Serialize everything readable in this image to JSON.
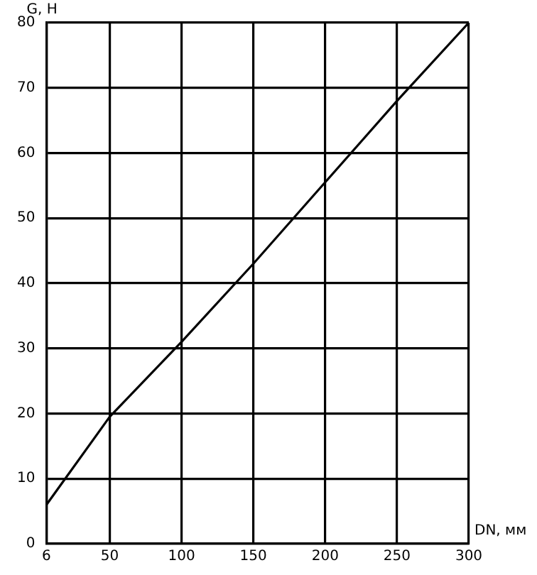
{
  "chart_data": {
    "type": "line",
    "xlabel": "DN, мм",
    "ylabel": "G, Н",
    "x": [
      6,
      50,
      100,
      150,
      200,
      250,
      300
    ],
    "series": [
      {
        "color": "#000000",
        "values": [
          6,
          19.5,
          31,
          43,
          55.5,
          68,
          80
        ]
      }
    ],
    "xlim": [
      6,
      300
    ],
    "xticks": [
      6,
      50,
      100,
      150,
      200,
      250,
      300
    ],
    "ylim": [
      0,
      80
    ],
    "yticks": [
      0,
      10,
      20,
      30,
      40,
      50,
      60,
      70,
      80
    ],
    "grid": true,
    "legend": false,
    "marker": "none",
    "line_style": "solid"
  }
}
